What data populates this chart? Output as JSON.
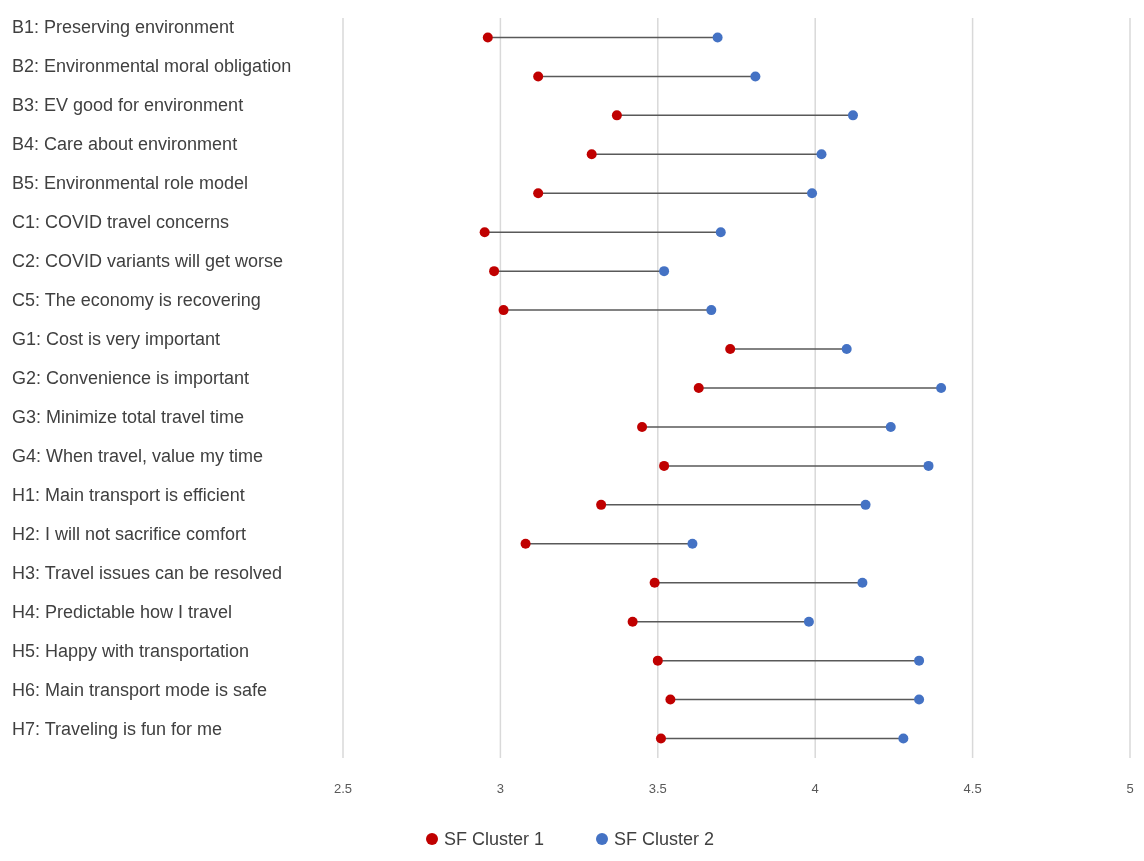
{
  "chart_data": {
    "type": "scatter",
    "orientation": "horizontal",
    "categories": [
      "B1: Preserving environment",
      "B2: Environmental moral obligation",
      "B3: EV good for environment",
      "B4: Care about environment",
      "B5: Environmental role model",
      "C1: COVID travel concerns",
      "C2: COVID variants will get worse",
      "C5: The economy is recovering",
      "G1: Cost is very important",
      "G2: Convenience is important",
      "G3: Minimize total travel time",
      "G4: When travel, value my time",
      "H1: Main transport is efficient",
      "H2: I will not sacrifice comfort",
      "H3: Travel issues can be resolved",
      "H4: Predictable how I travel",
      "H5: Happy with transportation",
      "H6: Main transport mode is safe",
      "H7: Traveling is fun for me"
    ],
    "series": [
      {
        "name": "SF Cluster 1",
        "color": "#c00000",
        "values": [
          2.96,
          3.12,
          3.37,
          3.29,
          3.12,
          2.95,
          2.98,
          3.01,
          3.73,
          3.63,
          3.45,
          3.52,
          3.32,
          3.08,
          3.49,
          3.42,
          3.5,
          3.54,
          3.51
        ]
      },
      {
        "name": "SF Cluster 2",
        "color": "#4472c4",
        "values": [
          3.69,
          3.81,
          4.12,
          4.02,
          3.99,
          3.7,
          3.52,
          3.67,
          4.1,
          4.4,
          4.24,
          4.36,
          4.16,
          3.61,
          4.15,
          3.98,
          4.33,
          4.33,
          4.28
        ]
      }
    ],
    "xlim": [
      2.5,
      5
    ],
    "xticks": [
      2.5,
      3,
      3.5,
      4,
      4.5,
      5
    ],
    "grid": "x",
    "legend": "bottom",
    "marker": "circle"
  }
}
